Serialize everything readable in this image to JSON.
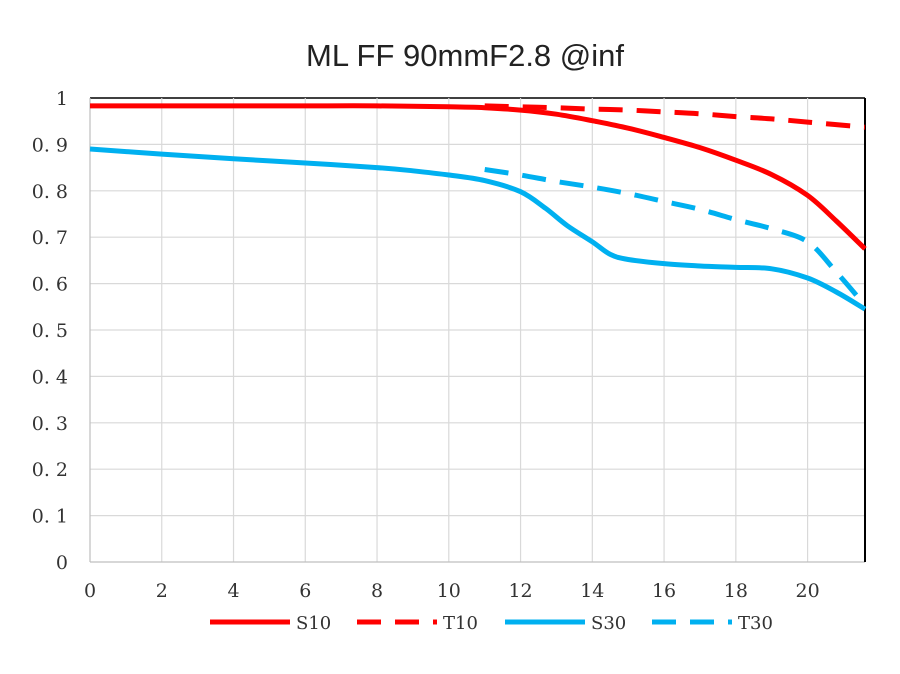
{
  "chart_data": {
    "type": "line",
    "title": "ML FF 90mmF2.8 @inf",
    "xlim": [
      0,
      21.6
    ],
    "ylim": [
      0,
      1
    ],
    "grid": true,
    "legend_position": "bottom",
    "x_ticks": [
      {
        "value": 0,
        "label": "0"
      },
      {
        "value": 2,
        "label": "2"
      },
      {
        "value": 4,
        "label": "4"
      },
      {
        "value": 6,
        "label": "6"
      },
      {
        "value": 8,
        "label": "8"
      },
      {
        "value": 10,
        "label": "10"
      },
      {
        "value": 12,
        "label": "12"
      },
      {
        "value": 14,
        "label": "14"
      },
      {
        "value": 16,
        "label": "16"
      },
      {
        "value": 18,
        "label": "18"
      },
      {
        "value": 20,
        "label": "20"
      }
    ],
    "y_ticks": [
      {
        "value": 0,
        "label": "0"
      },
      {
        "value": 0.1,
        "label": "0. 1"
      },
      {
        "value": 0.2,
        "label": "0. 2"
      },
      {
        "value": 0.3,
        "label": "0. 3"
      },
      {
        "value": 0.4,
        "label": "0. 4"
      },
      {
        "value": 0.5,
        "label": "0. 5"
      },
      {
        "value": 0.6,
        "label": "0. 6"
      },
      {
        "value": 0.7,
        "label": "0. 7"
      },
      {
        "value": 0.8,
        "label": "0. 8"
      },
      {
        "value": 0.9,
        "label": "0. 9"
      },
      {
        "value": 1,
        "label": "1"
      }
    ],
    "series": [
      {
        "name": "S10",
        "color": "#ff0000",
        "style": "solid",
        "points": [
          [
            0,
            0.983
          ],
          [
            2,
            0.983
          ],
          [
            4,
            0.983
          ],
          [
            6,
            0.983
          ],
          [
            8,
            0.983
          ],
          [
            10,
            0.981
          ],
          [
            11,
            0.979
          ],
          [
            12,
            0.974
          ],
          [
            13,
            0.965
          ],
          [
            14,
            0.951
          ],
          [
            15,
            0.935
          ],
          [
            16,
            0.915
          ],
          [
            17,
            0.893
          ],
          [
            18,
            0.866
          ],
          [
            19,
            0.835
          ],
          [
            20,
            0.79
          ],
          [
            20.8,
            0.735
          ],
          [
            21.6,
            0.675
          ]
        ]
      },
      {
        "name": "T10",
        "color": "#ff0000",
        "style": "dashed",
        "points": [
          [
            11,
            0.983
          ],
          [
            12,
            0.981
          ],
          [
            13,
            0.979
          ],
          [
            14,
            0.976
          ],
          [
            15,
            0.974
          ],
          [
            16,
            0.97
          ],
          [
            17,
            0.966
          ],
          [
            18,
            0.96
          ],
          [
            19,
            0.955
          ],
          [
            20,
            0.948
          ],
          [
            21.6,
            0.937
          ]
        ]
      },
      {
        "name": "S30",
        "color": "#00b0f0",
        "style": "solid",
        "points": [
          [
            0,
            0.89
          ],
          [
            2,
            0.879
          ],
          [
            4,
            0.869
          ],
          [
            6,
            0.86
          ],
          [
            8,
            0.85
          ],
          [
            9,
            0.843
          ],
          [
            10,
            0.834
          ],
          [
            11,
            0.822
          ],
          [
            12,
            0.798
          ],
          [
            12.7,
            0.762
          ],
          [
            13.3,
            0.725
          ],
          [
            14,
            0.69
          ],
          [
            14.5,
            0.663
          ],
          [
            15,
            0.652
          ],
          [
            16,
            0.643
          ],
          [
            17,
            0.638
          ],
          [
            18,
            0.635
          ],
          [
            19,
            0.632
          ],
          [
            20,
            0.612
          ],
          [
            20.8,
            0.582
          ],
          [
            21.6,
            0.545
          ]
        ]
      },
      {
        "name": "T30",
        "color": "#00b0f0",
        "style": "dashed",
        "points": [
          [
            11,
            0.846
          ],
          [
            12,
            0.834
          ],
          [
            13,
            0.82
          ],
          [
            14,
            0.808
          ],
          [
            15,
            0.794
          ],
          [
            16,
            0.777
          ],
          [
            17,
            0.76
          ],
          [
            18,
            0.738
          ],
          [
            19,
            0.718
          ],
          [
            20,
            0.69
          ],
          [
            20.8,
            0.625
          ],
          [
            21.6,
            0.553
          ]
        ]
      }
    ]
  }
}
